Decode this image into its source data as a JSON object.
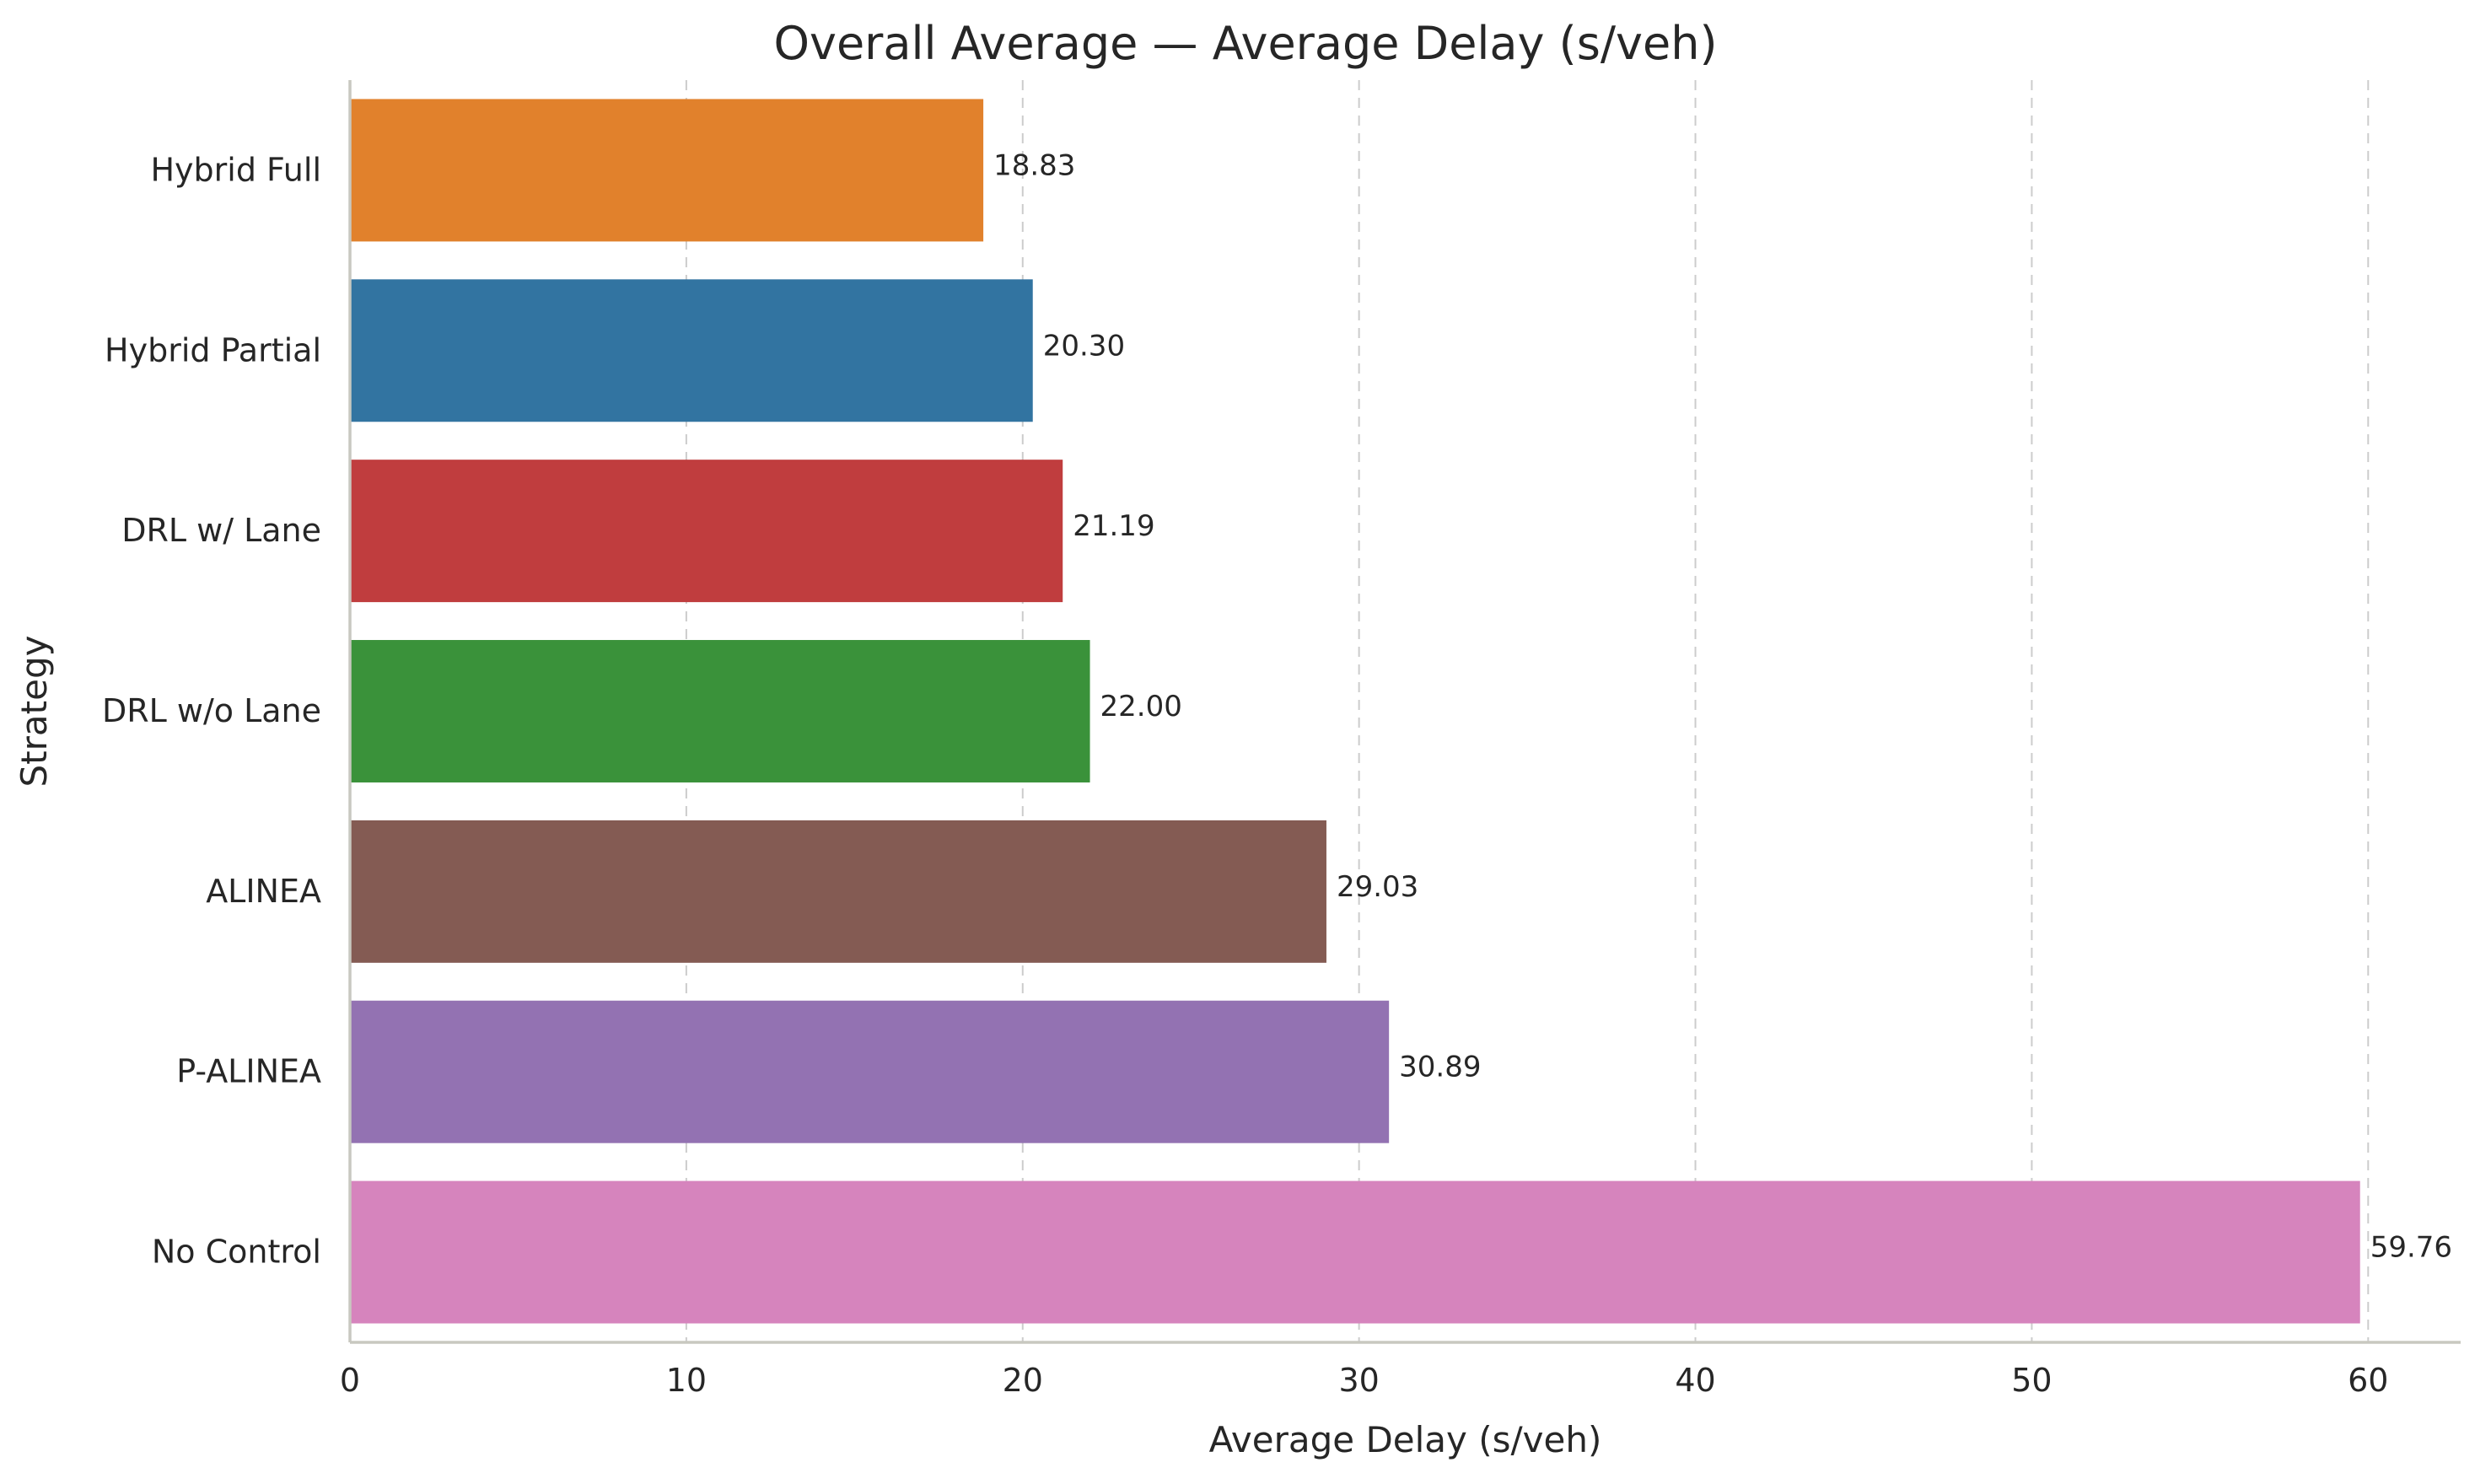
{
  "chart_data": {
    "type": "bar",
    "orientation": "horizontal",
    "title": "Overall Average — Average Delay (s/veh)",
    "xlabel": "Average Delay (s/veh)",
    "ylabel": "Strategy",
    "xlim": [
      0,
      62.75
    ],
    "xticks": [
      0,
      10,
      20,
      30,
      40,
      50,
      60
    ],
    "grid": "x-dashed",
    "categories": [
      "Hybrid Full",
      "Hybrid Partial",
      "DRL w/ Lane",
      "DRL w/o Lane",
      "ALINEA",
      "P-ALINEA",
      "No Control"
    ],
    "values": [
      18.83,
      20.3,
      21.19,
      22.0,
      29.03,
      30.89,
      59.76
    ],
    "value_labels": [
      "18.83",
      "20.30",
      "21.19",
      "22.00",
      "29.03",
      "30.89",
      "59.76"
    ],
    "colors": [
      "#e1812c",
      "#3274a1",
      "#c03d3e",
      "#3a923a",
      "#845b53",
      "#9372b2",
      "#d684bd"
    ]
  }
}
